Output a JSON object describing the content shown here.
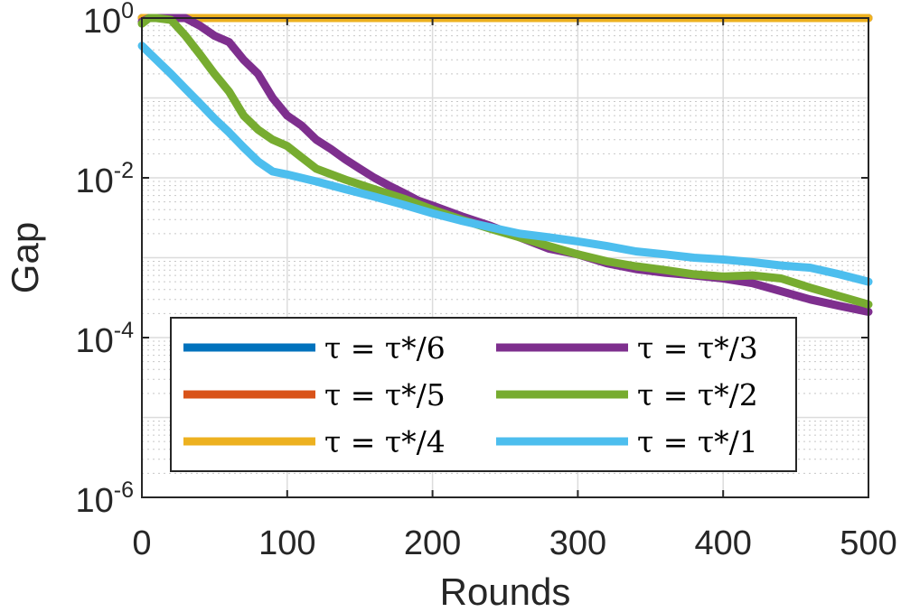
{
  "chart_data": {
    "type": "line",
    "xlabel": "Rounds",
    "ylabel": "Gap",
    "xlim": [
      0,
      500
    ],
    "ylim": [
      1e-06,
      1
    ],
    "yscale": "log",
    "grid": true,
    "minor_grid": true,
    "legend_position": "lower-left",
    "legend_columns": 2,
    "x_ticks": [
      {
        "value": 0,
        "label": "0"
      },
      {
        "value": 100,
        "label": "100"
      },
      {
        "value": 200,
        "label": "200"
      },
      {
        "value": 300,
        "label": "300"
      },
      {
        "value": 400,
        "label": "400"
      },
      {
        "value": 500,
        "label": "500"
      }
    ],
    "y_ticks": [
      {
        "value": 1,
        "base": "10",
        "exp": "0"
      },
      {
        "value": 0.01,
        "base": "10",
        "exp": "-2"
      },
      {
        "value": 0.0001,
        "base": "10",
        "exp": "-4"
      },
      {
        "value": 1e-06,
        "base": "10",
        "exp": "-6"
      }
    ],
    "series": [
      {
        "name": "τ = τ*/6",
        "color": "#0072BD",
        "x": [
          0,
          500
        ],
        "y": [
          1,
          1
        ]
      },
      {
        "name": "τ = τ*/5",
        "color": "#D95319",
        "x": [
          0,
          500
        ],
        "y": [
          1,
          1
        ]
      },
      {
        "name": "τ = τ*/4",
        "color": "#EDB120",
        "x": [
          0,
          500
        ],
        "y": [
          1,
          1
        ]
      },
      {
        "name": "τ = τ*/3",
        "color": "#7E2F8E",
        "x": [
          0,
          5,
          10,
          20,
          30,
          40,
          50,
          60,
          70,
          80,
          90,
          100,
          110,
          120,
          130,
          140,
          150,
          160,
          170,
          180,
          190,
          200,
          220,
          240,
          260,
          280,
          300,
          320,
          340,
          360,
          380,
          400,
          420,
          440,
          460,
          480,
          500
        ],
        "y": [
          0.9,
          1,
          1,
          1,
          1,
          0.8,
          0.6,
          0.5,
          0.3,
          0.2,
          0.1,
          0.06,
          0.045,
          0.03,
          0.023,
          0.017,
          0.013,
          0.01,
          0.008,
          0.0065,
          0.0052,
          0.0045,
          0.0033,
          0.0025,
          0.0018,
          0.0013,
          0.0011,
          0.00085,
          0.00072,
          0.00065,
          0.0006,
          0.00055,
          0.00048,
          0.00038,
          0.0003,
          0.00025,
          0.00021
        ]
      },
      {
        "name": "τ = τ*/2",
        "color": "#77AC30",
        "x": [
          0,
          5,
          10,
          20,
          30,
          40,
          50,
          60,
          70,
          80,
          90,
          100,
          110,
          120,
          140,
          160,
          180,
          200,
          220,
          240,
          260,
          280,
          300,
          320,
          340,
          360,
          380,
          400,
          420,
          440,
          460,
          480,
          500
        ],
        "y": [
          0.85,
          1,
          1,
          0.95,
          0.6,
          0.35,
          0.2,
          0.12,
          0.06,
          0.04,
          0.03,
          0.025,
          0.018,
          0.013,
          0.0095,
          0.0072,
          0.0055,
          0.004,
          0.003,
          0.0023,
          0.0018,
          0.0014,
          0.0011,
          0.0009,
          0.00078,
          0.0007,
          0.00062,
          0.00058,
          0.0006,
          0.00055,
          0.00042,
          0.00033,
          0.00026
        ]
      },
      {
        "name": "τ = τ*/1",
        "color": "#4DBEEE",
        "x": [
          0,
          10,
          20,
          30,
          40,
          50,
          60,
          70,
          80,
          90,
          100,
          120,
          140,
          160,
          180,
          200,
          220,
          240,
          260,
          280,
          300,
          320,
          340,
          360,
          380,
          400,
          420,
          440,
          460,
          480,
          500
        ],
        "y": [
          0.45,
          0.3,
          0.2,
          0.13,
          0.085,
          0.055,
          0.037,
          0.024,
          0.016,
          0.012,
          0.011,
          0.009,
          0.0072,
          0.0058,
          0.0046,
          0.0036,
          0.0029,
          0.0024,
          0.002,
          0.0018,
          0.0016,
          0.0014,
          0.0012,
          0.0011,
          0.001,
          0.00095,
          0.00088,
          0.0008,
          0.00075,
          0.00062,
          0.0005
        ]
      }
    ]
  }
}
